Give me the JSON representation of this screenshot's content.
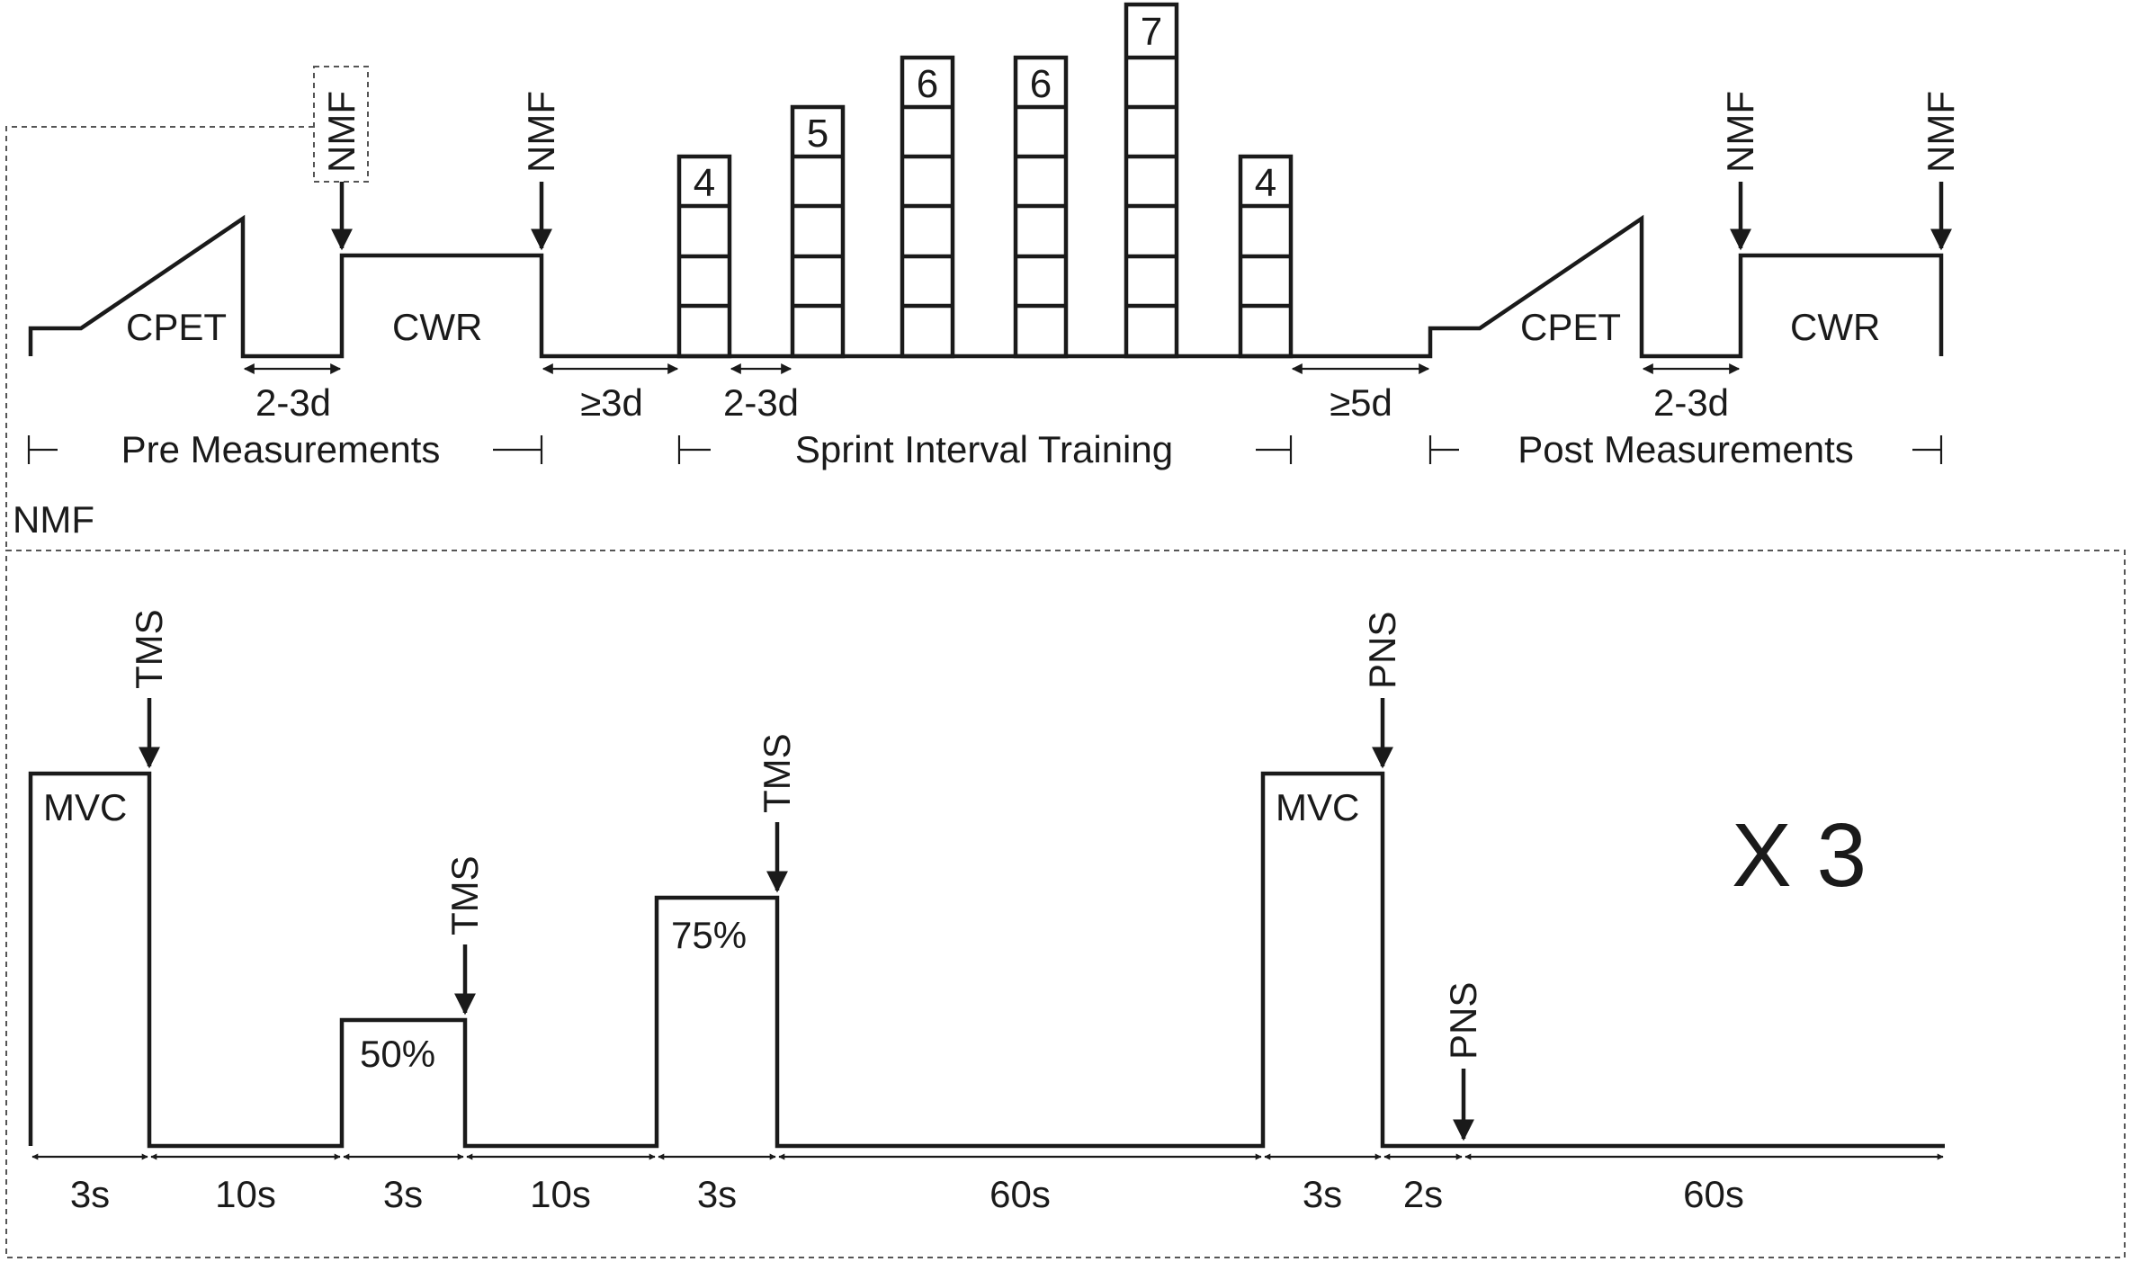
{
  "timeline": {
    "pre_cpet": "CPET",
    "pre_cwr": "CWR",
    "post_cpet": "CPET",
    "post_cwr": "CWR",
    "nmf_marker": "NMF",
    "gap_pre": "2-3d",
    "gap_to_sit": "≥3d",
    "gap_sit": "2-3d",
    "gap_to_post": "≥5d",
    "gap_post": "2-3d",
    "phase_pre": "Pre Measurements",
    "phase_sit": "Sprint Interval Training",
    "phase_post": "Post Measurements",
    "sprint_counts": [
      "4",
      "5",
      "6",
      "6",
      "7",
      "4"
    ]
  },
  "nmf_panel": {
    "title": "NMF",
    "mvc_label": "MVC",
    "pct50_label": "50%",
    "pct75_label": "75%",
    "tms_label": "TMS",
    "pns_label": "PNS",
    "repeat_label": "X 3",
    "durations": [
      "3s",
      "10s",
      "3s",
      "10s",
      "3s",
      "60s",
      "3s",
      "2s",
      "60s"
    ]
  }
}
